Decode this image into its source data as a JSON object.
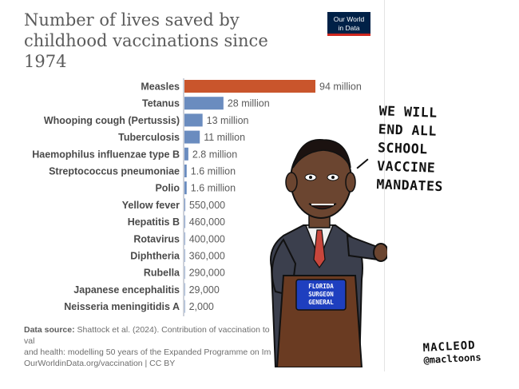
{
  "chart_data": {
    "type": "bar",
    "title": "Number of lives saved by childhood vaccinations since 1974",
    "categories": [
      "Measles",
      "Tetanus",
      "Whooping cough (Pertussis)",
      "Tuberculosis",
      "Haemophilus influenzae type B",
      "Streptococcus pneumoniae",
      "Polio",
      "Yellow fever",
      "Hepatitis B",
      "Rotavirus",
      "Diphtheria",
      "Rubella",
      "Japanese encephalitis",
      "Neisseria meningitidis A"
    ],
    "values": [
      94000000,
      28000000,
      13000000,
      11000000,
      2800000,
      1600000,
      1600000,
      550000,
      460000,
      400000,
      360000,
      290000,
      29000,
      2000
    ],
    "value_labels": [
      "94 million",
      "28 million",
      "13 million",
      "11 million",
      "2.8 million",
      "1.6 million",
      "1.6 million",
      "550,000",
      "460,000",
      "400,000",
      "360,000",
      "290,000",
      "29,000",
      "2,000"
    ],
    "highlight_index": 0,
    "colors": {
      "highlight": "#c9552c",
      "bar": "#6a8cbf",
      "axis": "#9ca6b4"
    },
    "xlim": [
      0,
      94000000
    ],
    "grid": false
  },
  "logo": {
    "line1": "Our World",
    "line2": "in Data",
    "bg_color": "#002147",
    "accent_color": "#ce261e"
  },
  "source": {
    "label": "Data source:",
    "text": "Shattock et al. (2024). Contribution of vaccination to",
    "text_end": "val",
    "line2": "and health: modelling 50 years of the Expanded Programme on Im",
    "line3": "OurWorldinData.org/vaccination | CC BY"
  },
  "cartoon": {
    "speech_lines": [
      "WE WILL",
      "END ALL",
      "SCHOOL",
      "VACCINE",
      "MANDATES"
    ],
    "podium_lines": [
      "FLORIDA",
      "SURGEON",
      "GENERAL"
    ],
    "signature_name": "MACLEOD",
    "signature_handle": "@macltoons"
  }
}
